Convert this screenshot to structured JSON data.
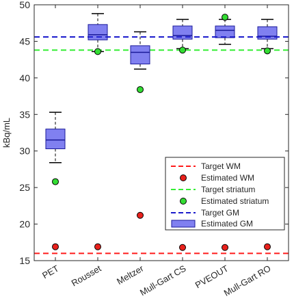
{
  "chart_data": {
    "type": "box",
    "ylabel": "kBq/mL",
    "xlabel": "",
    "ylim": [
      15,
      50
    ],
    "yticks": [
      15,
      20,
      25,
      30,
      35,
      40,
      45,
      50
    ],
    "categories": [
      "PET",
      "Rousset",
      "Meltzer",
      "Mull-Gart CS",
      "PVEOUT",
      "Mull-Gart RO"
    ],
    "grid": false,
    "legend_position": "bottom-right",
    "reference_lines": [
      {
        "name": "Target WM",
        "y": 16.0,
        "color": "#ff1a1a",
        "dash": "dashed"
      },
      {
        "name": "Target striatum",
        "y": 43.8,
        "color": "#33ee33",
        "dash": "dashed"
      },
      {
        "name": "Target GM",
        "y": 45.6,
        "color": "#1a1acc",
        "dash": "dashed"
      }
    ],
    "estimated_wm": {
      "name": "Estimated WM",
      "color": "#e8211c",
      "values": [
        16.9,
        16.9,
        21.2,
        16.8,
        16.8,
        16.9
      ]
    },
    "estimated_striatum": {
      "name": "Estimated striatum",
      "color": "#33dd33",
      "values": [
        25.8,
        43.6,
        38.4,
        43.8,
        48.3,
        43.7
      ]
    },
    "estimated_gm": {
      "name": "Estimated GM",
      "color": "#8080f0",
      "boxes": [
        {
          "whislo": 28.4,
          "q1": 30.3,
          "med": 31.5,
          "q3": 33.0,
          "whishi": 35.3
        },
        {
          "whislo": 43.6,
          "q1": 45.2,
          "med": 45.9,
          "q3": 47.3,
          "whishi": 48.8
        },
        {
          "whislo": 41.2,
          "q1": 41.9,
          "med": 43.5,
          "q3": 44.4,
          "whishi": 46.3
        },
        {
          "whislo": 44.0,
          "q1": 45.3,
          "med": 45.8,
          "q3": 47.1,
          "whishi": 48.0
        },
        {
          "whislo": 44.6,
          "q1": 45.5,
          "med": 46.5,
          "q3": 47.1,
          "whishi": 48.0
        },
        {
          "whislo": 44.0,
          "q1": 45.3,
          "med": 45.7,
          "q3": 47.0,
          "whishi": 48.0
        }
      ]
    }
  }
}
